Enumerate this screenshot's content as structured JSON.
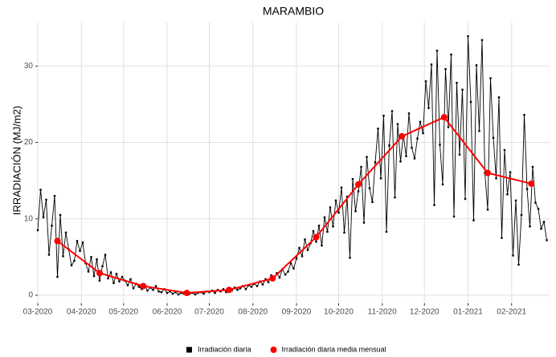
{
  "chart_data": {
    "type": "line",
    "title": "MARAMBIO",
    "y_label": "IRRADIACIÓN (MJ/m2)",
    "xlim": [
      0,
      364
    ],
    "ylim": [
      -1.05,
      35.7
    ],
    "xticks": [
      {
        "value": 0,
        "label": "03-2020"
      },
      {
        "value": 31,
        "label": "04-2020"
      },
      {
        "value": 61,
        "label": "05-2020"
      },
      {
        "value": 92,
        "label": "06-2020"
      },
      {
        "value": 122,
        "label": "07-2020"
      },
      {
        "value": 153,
        "label": "08-2020"
      },
      {
        "value": 184,
        "label": "09-2020"
      },
      {
        "value": 214,
        "label": "10-2020"
      },
      {
        "value": 245,
        "label": "11-2020"
      },
      {
        "value": 275,
        "label": "12-2020"
      },
      {
        "value": 306,
        "label": "01-2021"
      },
      {
        "value": 337,
        "label": "02-2021"
      }
    ],
    "yticks": [
      0,
      10,
      20,
      30
    ],
    "grid": true,
    "legend": "bottom",
    "series": [
      {
        "name": "Irradiación diaria",
        "color": "#000000",
        "marker": "square",
        "x": [
          0,
          2,
          4,
          6,
          8,
          10,
          12,
          14,
          16,
          18,
          20,
          22,
          24,
          26,
          28,
          30,
          32,
          34,
          36,
          38,
          40,
          42,
          44,
          46,
          48,
          50,
          52,
          54,
          56,
          58,
          60,
          62,
          64,
          66,
          68,
          70,
          72,
          74,
          76,
          78,
          80,
          82,
          84,
          86,
          88,
          90,
          92,
          94,
          96,
          98,
          100,
          102,
          104,
          106,
          108,
          110,
          112,
          114,
          116,
          118,
          120,
          122,
          124,
          126,
          128,
          130,
          132,
          134,
          136,
          138,
          140,
          142,
          144,
          146,
          148,
          150,
          152,
          154,
          156,
          158,
          160,
          162,
          164,
          166,
          168,
          170,
          172,
          174,
          176,
          178,
          180,
          182,
          184,
          186,
          188,
          190,
          192,
          194,
          196,
          198,
          200,
          202,
          204,
          206,
          208,
          210,
          212,
          214,
          216,
          218,
          220,
          222,
          224,
          226,
          228,
          230,
          232,
          234,
          236,
          238,
          240,
          242,
          244,
          246,
          248,
          250,
          252,
          254,
          256,
          258,
          260,
          262,
          264,
          266,
          268,
          270,
          272,
          274,
          276,
          278,
          280,
          282,
          284,
          286,
          288,
          290,
          292,
          294,
          296,
          298,
          300,
          302,
          304,
          306,
          308,
          310,
          312,
          314,
          316,
          318,
          320,
          322,
          324,
          326,
          328,
          330,
          332,
          334,
          336,
          338,
          340,
          342,
          344,
          346,
          348,
          350,
          352,
          354,
          356,
          358,
          360,
          362
        ],
        "values": [
          8.5,
          13.8,
          10.2,
          12.5,
          5.3,
          9.1,
          13.0,
          2.4,
          10.5,
          5.1,
          8.2,
          6.0,
          3.9,
          4.5,
          7.1,
          5.8,
          6.9,
          4.2,
          3.1,
          5.0,
          2.5,
          4.7,
          1.9,
          3.8,
          5.3,
          2.2,
          3.0,
          1.6,
          2.8,
          1.8,
          2.4,
          1.9,
          1.3,
          2.1,
          0.9,
          1.5,
          1.1,
          0.8,
          1.4,
          0.6,
          1.0,
          0.7,
          1.2,
          0.5,
          0.4,
          0.8,
          0.3,
          0.5,
          0.2,
          0.4,
          0.1,
          0.3,
          0.2,
          0.4,
          0.2,
          0.3,
          0.1,
          0.3,
          0.4,
          0.2,
          0.5,
          0.4,
          0.6,
          0.3,
          0.7,
          0.5,
          0.8,
          0.4,
          0.9,
          0.6,
          1.0,
          0.7,
          0.9,
          1.2,
          0.8,
          1.3,
          1.1,
          1.5,
          1.2,
          1.8,
          1.4,
          2.1,
          1.7,
          2.6,
          2.0,
          2.9,
          2.3,
          3.4,
          2.7,
          3.1,
          4.2,
          3.5,
          4.8,
          6.2,
          5.1,
          7.3,
          5.9,
          6.8,
          8.4,
          7.0,
          9.1,
          6.5,
          10.2,
          8.3,
          11.5,
          9.0,
          12.4,
          10.8,
          14.1,
          8.2,
          12.9,
          4.9,
          15.2,
          11.0,
          13.6,
          16.8,
          9.5,
          18.1,
          14.0,
          12.2,
          17.4,
          21.8,
          15.3,
          23.5,
          8.3,
          19.6,
          24.1,
          12.8,
          22.4,
          17.5,
          21.0,
          18.2,
          23.8,
          19.3,
          17.9,
          20.5,
          22.7,
          21.2,
          28.0,
          24.5,
          30.2,
          11.8,
          32.0,
          19.7,
          14.5,
          29.6,
          22.0,
          31.5,
          10.3,
          27.8,
          18.4,
          26.9,
          12.6,
          33.9,
          25.3,
          9.8,
          30.1,
          21.5,
          33.4,
          16.0,
          11.2,
          28.4,
          20.6,
          15.3,
          25.9,
          7.5,
          19.0,
          13.2,
          16.1,
          5.2,
          12.4,
          4.0,
          10.5,
          23.6,
          13.9,
          9.0,
          16.8,
          12.1,
          11.3,
          8.7,
          9.6,
          7.2
        ]
      },
      {
        "name": "Irradiación diaria media mensual",
        "color": "#ff0000",
        "marker": "circle",
        "x": [
          14,
          44,
          75,
          106,
          136,
          167,
          198,
          228,
          259,
          289,
          320,
          351
        ],
        "values": [
          7.1,
          2.9,
          1.2,
          0.3,
          0.7,
          2.2,
          7.6,
          14.5,
          20.8,
          23.3,
          16.0,
          14.6
        ]
      }
    ]
  }
}
